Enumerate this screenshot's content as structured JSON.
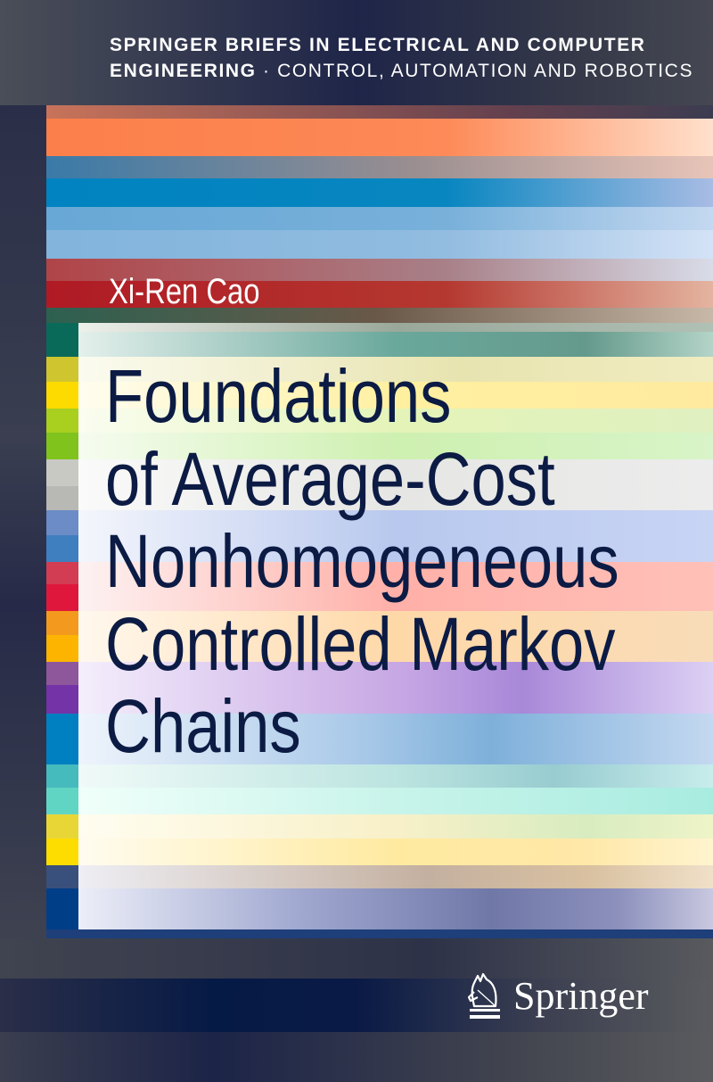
{
  "series": {
    "line1": "SPRINGER BRIEFS IN ELECTRICAL AND COMPUTER",
    "line2_bold": "ENGINEERING",
    "line2_rest": " · CONTROL, AUTOMATION AND ROBOTICS"
  },
  "author": "Xi-Ren Cao",
  "title_lines": [
    "Foundations",
    "of Average-Cost",
    "Nonhomogeneous",
    "Controlled Markov",
    "Chains"
  ],
  "publisher": {
    "name": "Springer",
    "logo_icon": "knight-horse-icon"
  },
  "colors": {
    "title": "#0c1b44",
    "background": "#2f3345",
    "author": "#ffffff"
  }
}
